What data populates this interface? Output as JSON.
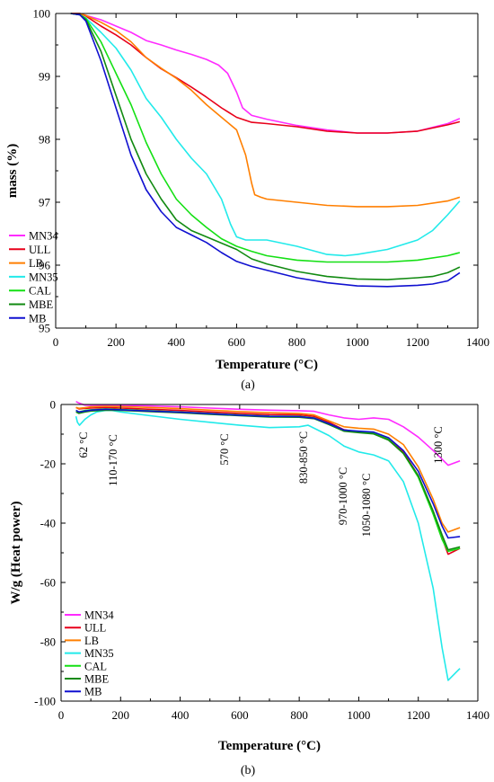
{
  "colors": {
    "MN34": "#ff2bff",
    "ULL": "#e8001a",
    "LB": "#ff7f00",
    "MN35": "#22eaea",
    "CAL": "#14e014",
    "MBE": "#118a11",
    "MB": "#1010d0",
    "axis": "#000000"
  },
  "chart_data": [
    {
      "panel_label": "(a)",
      "type": "line",
      "xlabel": "Temperature (°C)",
      "ylabel": "mass (%)",
      "xlim": [
        0,
        1400
      ],
      "ylim": [
        95,
        100
      ],
      "xticks": [
        0,
        200,
        400,
        600,
        800,
        1000,
        1200,
        1400
      ],
      "yticks": [
        95,
        96,
        97,
        98,
        99,
        100
      ],
      "grid": false,
      "legend_position": "bottom-left",
      "series": [
        {
          "name": "MN34",
          "x": [
            50,
            80,
            100,
            150,
            200,
            250,
            300,
            350,
            400,
            450,
            500,
            540,
            570,
            600,
            620,
            650,
            700,
            800,
            900,
            1000,
            1100,
            1200,
            1300,
            1340
          ],
          "y": [
            100,
            100,
            99.97,
            99.9,
            99.8,
            99.7,
            99.57,
            99.5,
            99.42,
            99.35,
            99.27,
            99.18,
            99.05,
            98.75,
            98.5,
            98.38,
            98.32,
            98.22,
            98.15,
            98.1,
            98.1,
            98.13,
            98.25,
            98.33
          ]
        },
        {
          "name": "ULL",
          "x": [
            50,
            80,
            100,
            150,
            200,
            250,
            300,
            350,
            400,
            450,
            500,
            550,
            600,
            650,
            700,
            800,
            900,
            1000,
            1100,
            1200,
            1300,
            1340
          ],
          "y": [
            100,
            100,
            99.96,
            99.8,
            99.66,
            99.5,
            99.3,
            99.12,
            98.98,
            98.83,
            98.67,
            98.5,
            98.35,
            98.27,
            98.25,
            98.2,
            98.13,
            98.1,
            98.1,
            98.13,
            98.23,
            98.28
          ]
        },
        {
          "name": "LB",
          "x": [
            50,
            80,
            100,
            150,
            200,
            250,
            300,
            350,
            400,
            450,
            500,
            550,
            600,
            630,
            650,
            660,
            680,
            700,
            800,
            900,
            1000,
            1100,
            1200,
            1300,
            1340
          ],
          "y": [
            100,
            100,
            99.97,
            99.86,
            99.73,
            99.55,
            99.3,
            99.13,
            98.97,
            98.78,
            98.55,
            98.35,
            98.15,
            97.75,
            97.3,
            97.12,
            97.08,
            97.05,
            97,
            96.95,
            96.93,
            96.93,
            96.95,
            97.02,
            97.08
          ]
        },
        {
          "name": "MN35",
          "x": [
            50,
            80,
            100,
            150,
            200,
            250,
            300,
            350,
            400,
            450,
            500,
            550,
            580,
            600,
            630,
            660,
            700,
            800,
            900,
            960,
            1000,
            1100,
            1200,
            1250,
            1300,
            1340
          ],
          "y": [
            100,
            99.98,
            99.93,
            99.7,
            99.45,
            99.1,
            98.65,
            98.35,
            98,
            97.7,
            97.45,
            97.05,
            96.65,
            96.45,
            96.4,
            96.4,
            96.4,
            96.3,
            96.17,
            96.15,
            96.17,
            96.25,
            96.4,
            96.55,
            96.8,
            97.02
          ]
        },
        {
          "name": "CAL",
          "x": [
            50,
            80,
            100,
            150,
            200,
            250,
            300,
            350,
            400,
            450,
            500,
            550,
            600,
            650,
            700,
            800,
            900,
            1000,
            1100,
            1200,
            1300,
            1340
          ],
          "y": [
            100,
            99.98,
            99.92,
            99.55,
            99.05,
            98.55,
            97.95,
            97.45,
            97.05,
            96.8,
            96.6,
            96.42,
            96.3,
            96.22,
            96.15,
            96.08,
            96.05,
            96.05,
            96.05,
            96.08,
            96.15,
            96.2
          ]
        },
        {
          "name": "MBE",
          "x": [
            50,
            80,
            100,
            150,
            200,
            250,
            300,
            350,
            400,
            450,
            500,
            550,
            600,
            650,
            700,
            800,
            900,
            1000,
            1100,
            1200,
            1250,
            1300,
            1340
          ],
          "y": [
            100,
            99.98,
            99.9,
            99.4,
            98.7,
            98,
            97.45,
            97.05,
            96.72,
            96.55,
            96.45,
            96.35,
            96.25,
            96.1,
            96.02,
            95.9,
            95.82,
            95.78,
            95.77,
            95.8,
            95.82,
            95.88,
            95.97
          ]
        },
        {
          "name": "MB",
          "x": [
            50,
            80,
            100,
            150,
            200,
            250,
            300,
            350,
            400,
            450,
            500,
            550,
            600,
            650,
            700,
            800,
            900,
            1000,
            1100,
            1200,
            1250,
            1300,
            1340
          ],
          "y": [
            100,
            99.98,
            99.88,
            99.25,
            98.5,
            97.75,
            97.2,
            96.85,
            96.6,
            96.48,
            96.36,
            96.2,
            96.06,
            95.98,
            95.92,
            95.8,
            95.72,
            95.67,
            95.66,
            95.68,
            95.7,
            95.75,
            95.88
          ]
        }
      ]
    },
    {
      "panel_label": "(b)",
      "type": "line",
      "xlabel": "Temperature (°C)",
      "ylabel": "W/g (Heat power)",
      "xlim": [
        0,
        1400
      ],
      "ylim": [
        -100,
        0
      ],
      "xticks": [
        0,
        200,
        400,
        600,
        800,
        1000,
        1200,
        1400
      ],
      "yticks": [
        0,
        -20,
        -40,
        -60,
        -80,
        -100
      ],
      "grid": false,
      "legend_position": "bottom-left",
      "annotations": [
        {
          "text": "62 °C",
          "x": 62,
          "y": -9.5
        },
        {
          "text": "110-170 °C",
          "x": 140,
          "y": -7
        },
        {
          "text": "570 °C",
          "x": 570,
          "y": -8.5
        },
        {
          "text": "830-850 °C",
          "x": 840,
          "y": -8
        },
        {
          "text": "970-1000 °C",
          "x": 985,
          "y": -9.5
        },
        {
          "text": "1050-1080 °C",
          "x": 1065,
          "y": -12
        },
        {
          "text": "1300 °C",
          "x": 1300,
          "y": -7
        }
      ],
      "series": [
        {
          "name": "MN34",
          "x": [
            50,
            60,
            80,
            100,
            150,
            200,
            300,
            400,
            500,
            600,
            700,
            800,
            850,
            900,
            950,
            1000,
            1050,
            1100,
            1150,
            1200,
            1250,
            1300,
            1340
          ],
          "y": [
            1,
            0.5,
            -0.2,
            -0.3,
            -0.2,
            -0.3,
            -0.5,
            -0.8,
            -1.2,
            -1.6,
            -1.9,
            -2.1,
            -2.3,
            -3.5,
            -4.5,
            -5,
            -4.5,
            -5,
            -7.5,
            -11,
            -15.5,
            -20.5,
            -19
          ]
        },
        {
          "name": "ULL",
          "x": [
            50,
            60,
            80,
            100,
            150,
            200,
            300,
            400,
            500,
            600,
            700,
            800,
            850,
            900,
            950,
            1000,
            1050,
            1100,
            1150,
            1200,
            1250,
            1280,
            1300,
            1340
          ],
          "y": [
            -1,
            -1.5,
            -1.3,
            -1.2,
            -1,
            -1.2,
            -1.6,
            -2,
            -2.5,
            -3,
            -3.4,
            -3.5,
            -4,
            -6,
            -8.5,
            -9.3,
            -9.5,
            -11.5,
            -16,
            -24,
            -36,
            -45,
            -50.5,
            -48.5
          ]
        },
        {
          "name": "LB",
          "x": [
            50,
            60,
            80,
            100,
            150,
            200,
            300,
            400,
            500,
            600,
            700,
            800,
            850,
            900,
            950,
            1000,
            1050,
            1100,
            1150,
            1200,
            1250,
            1280,
            1300,
            1340
          ],
          "y": [
            -1,
            -1.3,
            -1.1,
            -0.8,
            -0.6,
            -0.7,
            -1,
            -1.4,
            -1.9,
            -2.4,
            -2.8,
            -3,
            -3.5,
            -5.5,
            -7.5,
            -8,
            -8.3,
            -10,
            -13.5,
            -21,
            -32,
            -40,
            -43,
            -41.5
          ]
        },
        {
          "name": "MN35",
          "x": [
            50,
            55,
            62,
            80,
            100,
            120,
            150,
            170,
            200,
            300,
            400,
            500,
            600,
            700,
            800,
            830,
            850,
            900,
            950,
            1000,
            1050,
            1100,
            1150,
            1200,
            1250,
            1280,
            1300,
            1340
          ],
          "y": [
            -4,
            -6,
            -7,
            -5,
            -3.5,
            -2.5,
            -2,
            -2,
            -2.5,
            -3.8,
            -5,
            -6,
            -7,
            -7.8,
            -7.5,
            -7,
            -8,
            -10.5,
            -14,
            -16,
            -17,
            -19,
            -26,
            -40,
            -62,
            -82,
            -93,
            -89
          ]
        },
        {
          "name": "CAL",
          "x": [
            50,
            60,
            80,
            100,
            150,
            200,
            300,
            400,
            500,
            600,
            700,
            800,
            850,
            900,
            950,
            1000,
            1050,
            1100,
            1150,
            1200,
            1250,
            1280,
            1300,
            1340
          ],
          "y": [
            -2,
            -2.5,
            -2,
            -1.8,
            -1.5,
            -1.7,
            -2.1,
            -2.5,
            -3,
            -3.5,
            -3.9,
            -4,
            -4.5,
            -6.5,
            -8.7,
            -9.3,
            -9.7,
            -11.8,
            -16.5,
            -24.5,
            -37,
            -45.5,
            -49.5,
            -48.5
          ]
        },
        {
          "name": "MBE",
          "x": [
            50,
            60,
            80,
            100,
            150,
            200,
            300,
            400,
            500,
            600,
            700,
            800,
            850,
            900,
            950,
            1000,
            1050,
            1100,
            1150,
            1200,
            1250,
            1280,
            1300,
            1340
          ],
          "y": [
            -2.5,
            -3,
            -2.5,
            -2.2,
            -1.9,
            -2,
            -2.4,
            -2.8,
            -3.3,
            -3.8,
            -4.2,
            -4.3,
            -4.8,
            -6.8,
            -9,
            -9.5,
            -9.9,
            -12,
            -16.5,
            -24,
            -36,
            -44,
            -49,
            -48
          ]
        },
        {
          "name": "MB",
          "x": [
            50,
            60,
            80,
            100,
            150,
            200,
            300,
            400,
            500,
            600,
            700,
            800,
            850,
            900,
            950,
            1000,
            1050,
            1100,
            1150,
            1200,
            1250,
            1280,
            1300,
            1340
          ],
          "y": [
            -2,
            -2.5,
            -2.2,
            -1.9,
            -1.6,
            -1.8,
            -2.2,
            -2.6,
            -3.1,
            -3.6,
            -4,
            -4.1,
            -4.6,
            -6.5,
            -8.6,
            -9,
            -9.3,
            -11.2,
            -15.5,
            -22.5,
            -33.5,
            -41,
            -45,
            -44.5
          ]
        }
      ]
    }
  ]
}
